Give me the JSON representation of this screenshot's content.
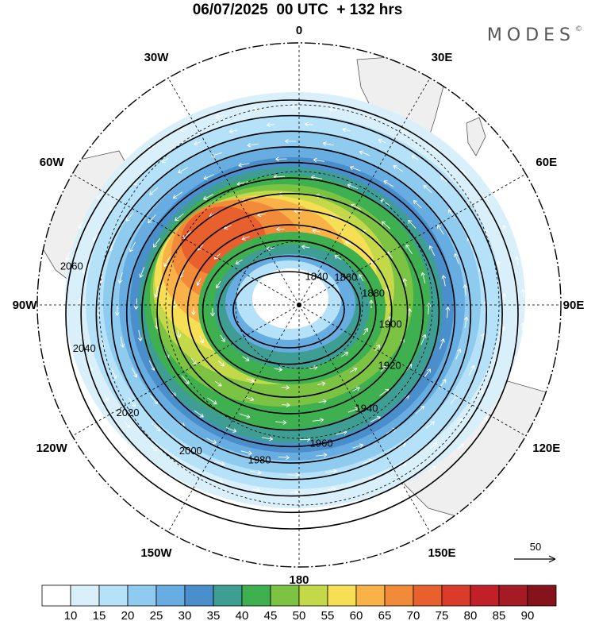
{
  "header": {
    "title": "06/07/2025  00 UTC  + 132 hrs",
    "brand": "MODES",
    "brand_mark": "©"
  },
  "longitude_labels": [
    "0",
    "30E",
    "60E",
    "90E",
    "120E",
    "150E",
    "180",
    "150W",
    "120W",
    "90W",
    "60W",
    "30W"
  ],
  "contours": [
    {
      "value": 1840,
      "label": "1840"
    },
    {
      "value": 1860,
      "label": "1860"
    },
    {
      "value": 1880,
      "label": "1880"
    },
    {
      "value": 1900,
      "label": "1900"
    },
    {
      "value": 1920,
      "label": "1920"
    },
    {
      "value": 1940,
      "label": "1940"
    },
    {
      "value": 1960,
      "label": "1960"
    },
    {
      "value": 1980,
      "label": "1980"
    },
    {
      "value": 2000,
      "label": "2000"
    },
    {
      "value": 2020,
      "label": "2020"
    },
    {
      "value": 2040,
      "label": "2040"
    },
    {
      "value": 2060,
      "label": "2060"
    }
  ],
  "vector_reference": {
    "label": "50"
  },
  "colorbar": {
    "ticks": [
      "10",
      "15",
      "20",
      "25",
      "30",
      "35",
      "40",
      "45",
      "50",
      "55",
      "60",
      "65",
      "70",
      "75",
      "80",
      "85",
      "90"
    ],
    "colors": [
      "#ffffff",
      "#d9f0fb",
      "#b5e2f8",
      "#8ecbef",
      "#68ade1",
      "#4a8fcb",
      "#3e9e94",
      "#3fb04f",
      "#7cc243",
      "#c4d94a",
      "#f6de55",
      "#f8b247",
      "#f18a39",
      "#e9602f",
      "#db3b2b",
      "#c12028",
      "#a41b23",
      "#86121b"
    ]
  },
  "map_colors": {
    "land": "#efefef",
    "coast": "#555555",
    "contour": "#000000",
    "vector": "#ffffff"
  }
}
